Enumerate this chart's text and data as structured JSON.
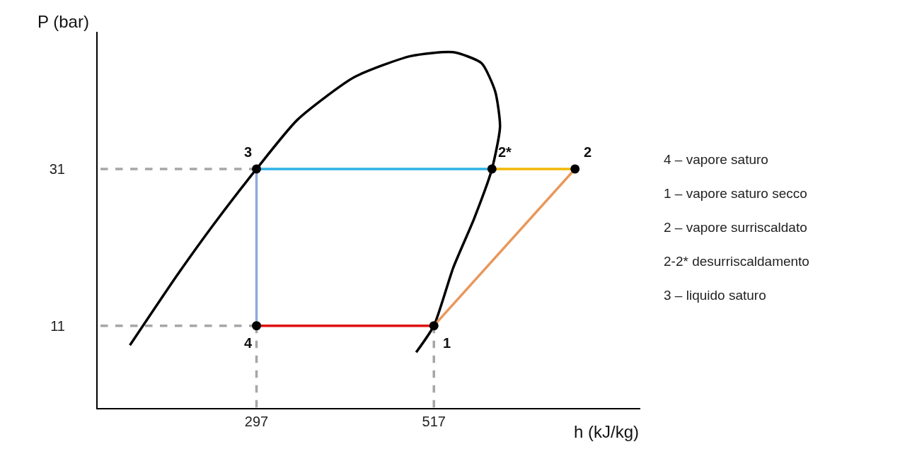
{
  "chart_data": {
    "type": "line",
    "xlabel": "h (kJ/kg)",
    "ylabel": "P (bar)",
    "xlim": [
      100,
      773
    ],
    "ylim": [
      0.5,
      48.5
    ],
    "xticks": [
      297,
      517
    ],
    "yticks": [
      31,
      11
    ],
    "series": [
      {
        "color": "#000000",
        "x": [
          140,
          199,
          243,
          297,
          348,
          418,
          488,
          541,
          576,
          593,
          599,
          589,
          567,
          541,
          517,
          495
        ],
        "values": [
          8.5,
          17.5,
          23.8,
          31,
          37.3,
          42.7,
          45.4,
          45.9,
          44.5,
          40.9,
          36.4,
          31,
          24.7,
          18.4,
          11,
          7.6
        ],
        "line_style": "solid",
        "marker": "none"
      },
      {
        "color": "#f2b705",
        "x": [
          692,
          589
        ],
        "values": [
          31,
          31
        ],
        "line_style": "solid",
        "marker": "none"
      },
      {
        "color": "#2eb2e6",
        "x": [
          589,
          297
        ],
        "values": [
          31,
          31
        ],
        "line_style": "solid",
        "marker": "none"
      },
      {
        "color": "#8ea9db",
        "x": [
          297,
          297
        ],
        "values": [
          31,
          11
        ],
        "line_style": "solid",
        "marker": "none"
      },
      {
        "color": "#e01010",
        "x": [
          297,
          517
        ],
        "values": [
          11,
          11
        ],
        "line_style": "solid",
        "marker": "none"
      },
      {
        "color": "#e9975a",
        "x": [
          517,
          692
        ],
        "values": [
          11,
          31
        ],
        "line_style": "solid",
        "marker": "none"
      },
      {
        "color": "#a6a6a6",
        "x": [
          297,
          100
        ],
        "values": [
          31,
          31
        ],
        "line_style": "dashed",
        "marker": "none"
      },
      {
        "color": "#a6a6a6",
        "x": [
          297,
          100
        ],
        "values": [
          11,
          11
        ],
        "line_style": "dashed",
        "marker": "none"
      },
      {
        "color": "#a6a6a6",
        "x": [
          297,
          297
        ],
        "values": [
          11,
          0.5
        ],
        "line_style": "dashed",
        "marker": "none"
      },
      {
        "color": "#a6a6a6",
        "x": [
          517,
          517
        ],
        "values": [
          11,
          0.5
        ],
        "line_style": "dashed",
        "marker": "none"
      },
      {
        "type": "scatter",
        "color": "#000000",
        "x": [
          297,
          589,
          692,
          297,
          517
        ],
        "values": [
          31,
          31,
          31,
          11,
          11
        ],
        "marker": "circle"
      }
    ],
    "annotations": [
      {
        "text": "3",
        "x": 297,
        "y": 31
      },
      {
        "text": "2*",
        "x": 589,
        "y": 31
      },
      {
        "text": "2",
        "x": 692,
        "y": 31
      },
      {
        "text": "4",
        "x": 297,
        "y": 11
      },
      {
        "text": "1",
        "x": 517,
        "y": 11
      },
      "4 – vapore saturo",
      "1 – vapore saturo secco",
      "2 – vapore surriscaldato",
      "2-2* desurriscaldamento",
      "3 – liquido saturo"
    ]
  }
}
